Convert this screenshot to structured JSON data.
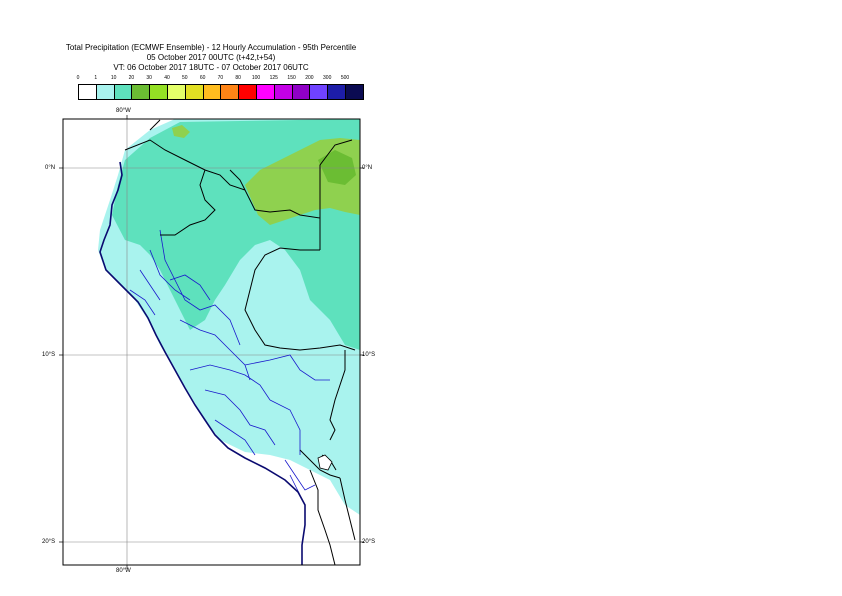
{
  "title": {
    "line1": "Total Precipitation (ECMWF Ensemble) - 12 Hourly Accumulation - 95th Percentile",
    "line2": "05 October 2017 00UTC (t+42,t+54)",
    "line3": "VT: 06 October 2017 18UTC - 07 October 2017 06UTC"
  },
  "legend": {
    "labels": [
      "0",
      "1",
      "10",
      "20",
      "30",
      "40",
      "50",
      "60",
      "70",
      "80",
      "100",
      "125",
      "150",
      "200",
      "300",
      "500"
    ],
    "colors": [
      "#ffffff",
      "#a9f3ee",
      "#5ee1bd",
      "#6bbd33",
      "#94e024",
      "#e4ff69",
      "#e2e023",
      "#ffbd1f",
      "#ff8416",
      "#ff0000",
      "#ff00ff",
      "#c400e6",
      "#8f00c6",
      "#6f42ff",
      "#1d1da8",
      "#0b0b52"
    ]
  },
  "map": {
    "lat_labels": {
      "n0": "0°N",
      "s10": "10°S",
      "s20": "20°S"
    },
    "lon_labels": {
      "w80_top": "80°W",
      "w80_bottom": "80°W"
    },
    "colors": {
      "border": "#000000",
      "coast": "#0a0a70",
      "admin": "#1a1acc",
      "grid": "#888888",
      "light": "#a9f3ee",
      "mid": "#5ee1bd",
      "green": "#8fd14f",
      "darkgreen": "#6bbd33"
    }
  }
}
